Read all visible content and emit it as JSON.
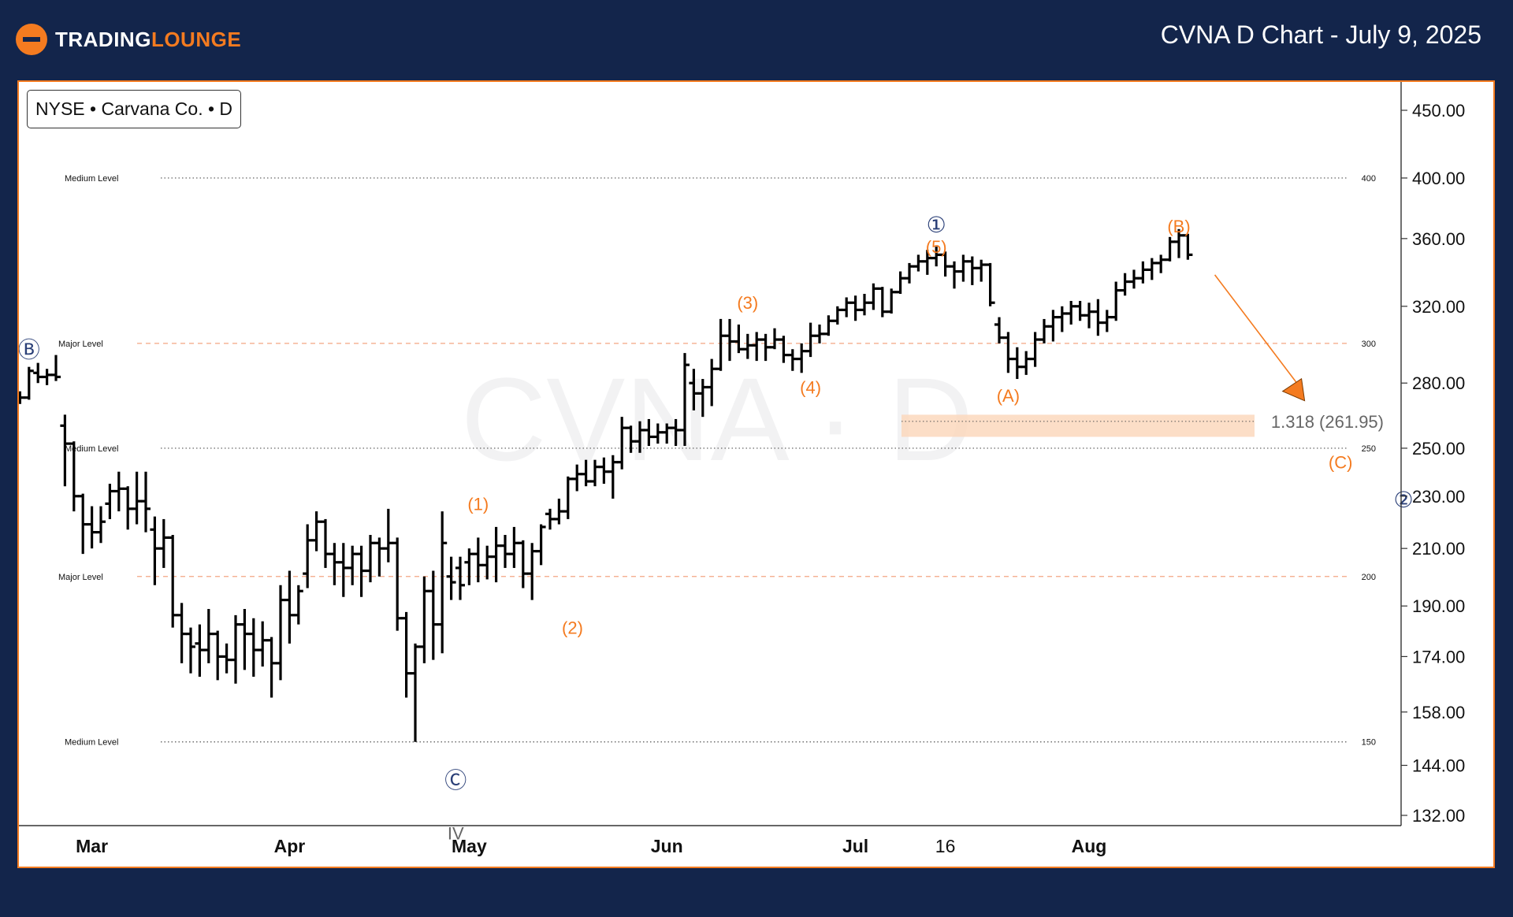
{
  "header": {
    "logo_text_part1": "TRADING",
    "logo_text_part2": "LOUNGE",
    "title": "CVNA D Chart - July 9, 2025"
  },
  "symbol_label": "NYSE • Carvana Co. • D",
  "colors": {
    "navy": "#13254b",
    "orange": "#f47b20",
    "salmon": "#f4a582",
    "bar": "#000000"
  },
  "chart_data": {
    "type": "ohlc",
    "title": "CVNA D Chart - July 9, 2025",
    "watermark": "CVNA · D",
    "y_axis_ticks": [
      "450.00",
      "400.00",
      "360.00",
      "320.00",
      "280.00",
      "250.00",
      "230.00",
      "210.00",
      "190.00",
      "174.00",
      "158.00",
      "144.00",
      "132.00"
    ],
    "x_axis_labels": [
      "Mar",
      "Apr",
      "May",
      "Jun",
      "Jul",
      "16",
      "Aug"
    ],
    "levels": [
      {
        "label": "Medium Level",
        "value": 400,
        "tag": "400",
        "kind": "medium"
      },
      {
        "label": "Major Level",
        "value": 300,
        "tag": "300",
        "kind": "major"
      },
      {
        "label": "Medium Level",
        "value": 250,
        "tag": "250",
        "kind": "medium"
      },
      {
        "label": "Major Level",
        "value": 200,
        "tag": "200",
        "kind": "major"
      },
      {
        "label": "Medium Level",
        "value": 150,
        "tag": "150",
        "kind": "medium"
      }
    ],
    "target_zone": {
      "label": "1.318 (261.95)",
      "low": 255,
      "high": 265
    },
    "wave_labels": [
      {
        "text": "Ⓑ",
        "date": -3,
        "price": 296,
        "color": "navy"
      },
      {
        "text": "Ⓒ",
        "date": 44.5,
        "price": 140,
        "color": "navy"
      },
      {
        "text": "IV",
        "date": 44.5,
        "price": 128,
        "color": "gray"
      },
      {
        "text": "(1)",
        "date": 47,
        "price": 227,
        "color": "orange"
      },
      {
        "text": "(2)",
        "date": 57.5,
        "price": 183,
        "color": "orange"
      },
      {
        "text": "(3)",
        "date": 77,
        "price": 322,
        "color": "orange"
      },
      {
        "text": "(4)",
        "date": 84,
        "price": 278,
        "color": "orange"
      },
      {
        "text": "①",
        "date": 98,
        "price": 368,
        "color": "navy"
      },
      {
        "text": "(5)",
        "date": 98,
        "price": 355,
        "color": "orange"
      },
      {
        "text": "(A)",
        "date": 106,
        "price": 274,
        "color": "orange"
      },
      {
        "text": "(B)",
        "date": 125,
        "price": 368,
        "color": "orange"
      },
      {
        "text": "(C)",
        "date": 143,
        "price": 244,
        "color": "orange"
      },
      {
        "text": "②",
        "date": 150,
        "price": 228,
        "color": "navy"
      }
    ],
    "projection_arrow": {
      "from": {
        "date": 129,
        "price": 338
      },
      "to": {
        "date": 139,
        "price": 273
      }
    },
    "bars": [
      [
        -6,
        264,
        268,
        262,
        267
      ],
      [
        -5,
        267,
        274,
        262,
        271
      ],
      [
        -4,
        271,
        276,
        270,
        273
      ],
      [
        -3,
        273,
        288,
        272,
        286
      ],
      [
        -2,
        285,
        290,
        280,
        283
      ],
      [
        -1,
        283,
        287,
        279,
        284
      ],
      [
        0,
        284,
        294,
        281,
        283
      ],
      [
        1,
        260,
        265,
        234,
        252
      ],
      [
        2,
        252,
        253,
        224,
        230
      ],
      [
        3,
        230,
        231,
        208,
        219
      ],
      [
        4,
        219,
        226,
        210,
        216
      ],
      [
        5,
        216,
        226,
        212,
        220
      ],
      [
        6,
        227,
        235,
        221,
        232
      ],
      [
        7,
        232,
        240,
        224,
        233
      ],
      [
        8,
        233,
        234,
        217,
        225
      ],
      [
        9,
        225,
        240,
        219,
        228
      ],
      [
        10,
        228,
        240,
        216,
        225
      ],
      [
        11,
        217,
        222,
        197,
        210
      ],
      [
        12,
        210,
        221,
        203,
        214
      ],
      [
        13,
        214,
        215,
        183,
        187
      ],
      [
        14,
        187,
        191,
        172,
        181
      ],
      [
        15,
        181,
        183,
        169,
        177
      ],
      [
        16,
        178,
        184,
        168,
        176
      ],
      [
        17,
        176,
        189,
        172,
        181
      ],
      [
        18,
        181,
        182,
        167,
        174
      ],
      [
        19,
        174,
        178,
        169,
        173
      ],
      [
        20,
        173,
        187,
        166,
        184
      ],
      [
        21,
        184,
        189,
        170,
        181
      ],
      [
        22,
        181,
        186,
        168,
        176
      ],
      [
        23,
        176,
        185,
        171,
        179
      ],
      [
        24,
        179,
        180,
        162,
        172
      ],
      [
        25,
        172,
        197,
        167,
        192
      ],
      [
        26,
        192,
        202,
        178,
        187
      ],
      [
        27,
        187,
        197,
        184,
        195
      ],
      [
        28,
        201,
        219,
        196,
        213
      ],
      [
        29,
        213,
        224,
        209,
        220
      ],
      [
        30,
        220,
        221,
        203,
        208
      ],
      [
        31,
        208,
        212,
        197,
        205
      ],
      [
        32,
        205,
        212,
        193,
        203
      ],
      [
        33,
        203,
        211,
        197,
        208
      ],
      [
        34,
        208,
        211,
        193,
        202
      ],
      [
        35,
        202,
        215,
        198,
        212
      ],
      [
        36,
        212,
        214,
        200,
        210
      ],
      [
        37,
        210,
        225,
        205,
        212
      ],
      [
        38,
        212,
        214,
        182,
        186
      ],
      [
        39,
        186,
        188,
        162,
        169
      ],
      [
        40,
        169,
        178,
        150,
        177
      ],
      [
        41,
        177,
        200,
        172,
        195
      ],
      [
        42,
        195,
        202,
        173,
        184
      ],
      [
        43,
        184,
        224,
        175,
        212
      ],
      [
        44,
        200,
        207,
        192,
        198
      ],
      [
        45,
        203,
        207,
        192,
        197
      ],
      [
        46,
        205,
        210,
        197,
        208
      ],
      [
        47,
        208,
        214,
        198,
        204
      ],
      [
        48,
        204,
        211,
        199,
        207
      ],
      [
        49,
        207,
        218,
        198,
        211
      ],
      [
        50,
        211,
        215,
        203,
        208
      ],
      [
        51,
        208,
        218,
        203,
        212
      ],
      [
        52,
        212,
        213,
        196,
        201
      ],
      [
        53,
        201,
        212,
        192,
        209
      ],
      [
        54,
        209,
        219,
        204,
        218
      ],
      [
        55,
        223,
        225,
        217,
        221
      ],
      [
        56,
        221,
        229,
        219,
        224
      ],
      [
        57,
        224,
        238,
        221,
        237
      ],
      [
        58,
        237,
        243,
        232,
        239
      ],
      [
        59,
        239,
        245,
        234,
        236
      ],
      [
        60,
        236,
        245,
        234,
        242
      ],
      [
        61,
        242,
        246,
        235,
        240
      ],
      [
        62,
        240,
        247,
        229,
        244
      ],
      [
        63,
        244,
        264,
        241,
        259
      ],
      [
        64,
        259,
        260,
        248,
        253
      ],
      [
        65,
        253,
        262,
        248,
        258
      ],
      [
        66,
        258,
        263,
        251,
        255
      ],
      [
        67,
        255,
        261,
        252,
        257
      ],
      [
        68,
        257,
        261,
        252,
        259
      ],
      [
        69,
        259,
        263,
        251,
        258
      ],
      [
        70,
        258,
        295,
        251,
        289
      ],
      [
        71,
        280,
        287,
        267,
        275
      ],
      [
        72,
        275,
        282,
        264,
        278
      ],
      [
        73,
        278,
        292,
        269,
        287
      ],
      [
        74,
        287,
        313,
        286,
        304
      ],
      [
        75,
        304,
        313,
        291,
        301
      ],
      [
        76,
        301,
        310,
        295,
        297
      ],
      [
        77,
        297,
        305,
        292,
        299
      ],
      [
        78,
        299,
        306,
        291,
        302
      ],
      [
        79,
        302,
        305,
        291,
        298
      ],
      [
        80,
        298,
        308,
        297,
        302
      ],
      [
        81,
        302,
        304,
        290,
        294
      ],
      [
        82,
        294,
        297,
        286,
        292
      ],
      [
        83,
        292,
        300,
        285,
        296
      ],
      [
        84,
        296,
        311,
        293,
        304
      ],
      [
        85,
        304,
        310,
        300,
        305
      ],
      [
        86,
        305,
        315,
        304,
        312
      ],
      [
        87,
        312,
        320,
        310,
        318
      ],
      [
        88,
        318,
        325,
        314,
        322
      ],
      [
        89,
        322,
        326,
        312,
        318
      ],
      [
        90,
        318,
        327,
        315,
        322
      ],
      [
        91,
        322,
        333,
        318,
        330
      ],
      [
        92,
        330,
        331,
        314,
        317
      ],
      [
        93,
        317,
        330,
        316,
        328
      ],
      [
        94,
        328,
        340,
        327,
        336
      ],
      [
        95,
        336,
        345,
        333,
        343
      ],
      [
        96,
        343,
        350,
        340,
        346
      ],
      [
        97,
        346,
        353,
        338,
        348
      ],
      [
        98,
        348,
        355,
        343,
        350
      ],
      [
        99,
        350,
        352,
        337,
        343
      ],
      [
        100,
        343,
        346,
        330,
        340
      ],
      [
        101,
        340,
        350,
        334,
        346
      ],
      [
        102,
        346,
        349,
        332,
        342
      ],
      [
        103,
        342,
        347,
        334,
        344
      ],
      [
        104,
        344,
        345,
        320,
        322
      ],
      [
        105,
        310,
        314,
        300,
        303
      ],
      [
        106,
        303,
        306,
        285,
        292
      ],
      [
        107,
        292,
        298,
        282,
        288
      ],
      [
        108,
        288,
        296,
        284,
        292
      ],
      [
        109,
        292,
        306,
        288,
        302
      ],
      [
        110,
        302,
        313,
        300,
        309
      ],
      [
        111,
        309,
        318,
        301,
        314
      ],
      [
        112,
        314,
        320,
        306,
        316
      ],
      [
        113,
        316,
        323,
        310,
        320
      ],
      [
        114,
        320,
        323,
        312,
        315
      ],
      [
        115,
        315,
        322,
        308,
        317
      ],
      [
        116,
        317,
        324,
        304,
        311
      ],
      [
        117,
        311,
        318,
        306,
        314
      ],
      [
        118,
        314,
        334,
        312,
        329
      ],
      [
        119,
        329,
        339,
        326,
        334
      ],
      [
        120,
        334,
        341,
        330,
        336
      ],
      [
        121,
        336,
        346,
        333,
        341
      ],
      [
        122,
        341,
        348,
        335,
        345
      ],
      [
        123,
        345,
        350,
        339,
        347
      ],
      [
        124,
        347,
        361,
        346,
        358
      ],
      [
        125,
        358,
        366,
        348,
        362
      ],
      [
        126,
        362,
        363,
        347,
        350
      ]
    ]
  }
}
